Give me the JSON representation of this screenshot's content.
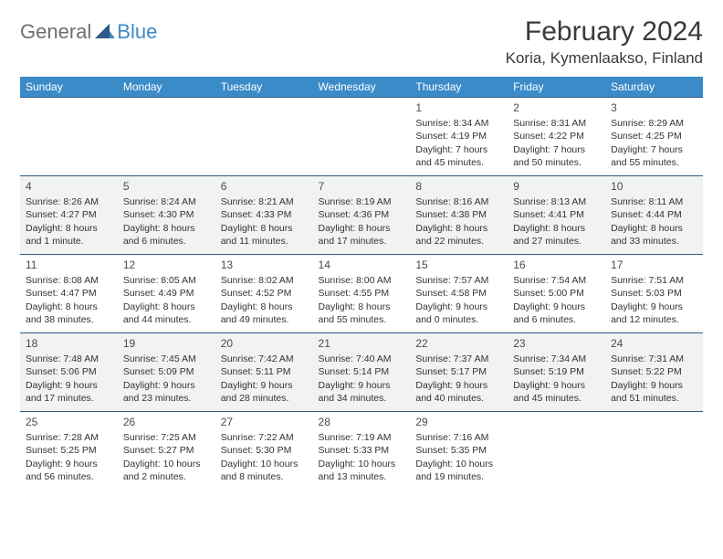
{
  "logo": {
    "part1": "General",
    "part2": "Blue"
  },
  "title": "February 2024",
  "location": "Koria, Kymenlaakso, Finland",
  "colors": {
    "header_bg": "#3b8bc8",
    "header_text": "#ffffff",
    "border": "#2f5b88",
    "alt_row": "#f1f2f2",
    "logo_gray": "#6d6e71",
    "logo_blue": "#3b8bc8"
  },
  "day_headers": [
    "Sunday",
    "Monday",
    "Tuesday",
    "Wednesday",
    "Thursday",
    "Friday",
    "Saturday"
  ],
  "weeks": [
    {
      "alt": false,
      "days": [
        null,
        null,
        null,
        null,
        {
          "n": "1",
          "sunrise": "Sunrise: 8:34 AM",
          "sunset": "Sunset: 4:19 PM",
          "day1": "Daylight: 7 hours",
          "day2": "and 45 minutes."
        },
        {
          "n": "2",
          "sunrise": "Sunrise: 8:31 AM",
          "sunset": "Sunset: 4:22 PM",
          "day1": "Daylight: 7 hours",
          "day2": "and 50 minutes."
        },
        {
          "n": "3",
          "sunrise": "Sunrise: 8:29 AM",
          "sunset": "Sunset: 4:25 PM",
          "day1": "Daylight: 7 hours",
          "day2": "and 55 minutes."
        }
      ]
    },
    {
      "alt": true,
      "days": [
        {
          "n": "4",
          "sunrise": "Sunrise: 8:26 AM",
          "sunset": "Sunset: 4:27 PM",
          "day1": "Daylight: 8 hours",
          "day2": "and 1 minute."
        },
        {
          "n": "5",
          "sunrise": "Sunrise: 8:24 AM",
          "sunset": "Sunset: 4:30 PM",
          "day1": "Daylight: 8 hours",
          "day2": "and 6 minutes."
        },
        {
          "n": "6",
          "sunrise": "Sunrise: 8:21 AM",
          "sunset": "Sunset: 4:33 PM",
          "day1": "Daylight: 8 hours",
          "day2": "and 11 minutes."
        },
        {
          "n": "7",
          "sunrise": "Sunrise: 8:19 AM",
          "sunset": "Sunset: 4:36 PM",
          "day1": "Daylight: 8 hours",
          "day2": "and 17 minutes."
        },
        {
          "n": "8",
          "sunrise": "Sunrise: 8:16 AM",
          "sunset": "Sunset: 4:38 PM",
          "day1": "Daylight: 8 hours",
          "day2": "and 22 minutes."
        },
        {
          "n": "9",
          "sunrise": "Sunrise: 8:13 AM",
          "sunset": "Sunset: 4:41 PM",
          "day1": "Daylight: 8 hours",
          "day2": "and 27 minutes."
        },
        {
          "n": "10",
          "sunrise": "Sunrise: 8:11 AM",
          "sunset": "Sunset: 4:44 PM",
          "day1": "Daylight: 8 hours",
          "day2": "and 33 minutes."
        }
      ]
    },
    {
      "alt": false,
      "days": [
        {
          "n": "11",
          "sunrise": "Sunrise: 8:08 AM",
          "sunset": "Sunset: 4:47 PM",
          "day1": "Daylight: 8 hours",
          "day2": "and 38 minutes."
        },
        {
          "n": "12",
          "sunrise": "Sunrise: 8:05 AM",
          "sunset": "Sunset: 4:49 PM",
          "day1": "Daylight: 8 hours",
          "day2": "and 44 minutes."
        },
        {
          "n": "13",
          "sunrise": "Sunrise: 8:02 AM",
          "sunset": "Sunset: 4:52 PM",
          "day1": "Daylight: 8 hours",
          "day2": "and 49 minutes."
        },
        {
          "n": "14",
          "sunrise": "Sunrise: 8:00 AM",
          "sunset": "Sunset: 4:55 PM",
          "day1": "Daylight: 8 hours",
          "day2": "and 55 minutes."
        },
        {
          "n": "15",
          "sunrise": "Sunrise: 7:57 AM",
          "sunset": "Sunset: 4:58 PM",
          "day1": "Daylight: 9 hours",
          "day2": "and 0 minutes."
        },
        {
          "n": "16",
          "sunrise": "Sunrise: 7:54 AM",
          "sunset": "Sunset: 5:00 PM",
          "day1": "Daylight: 9 hours",
          "day2": "and 6 minutes."
        },
        {
          "n": "17",
          "sunrise": "Sunrise: 7:51 AM",
          "sunset": "Sunset: 5:03 PM",
          "day1": "Daylight: 9 hours",
          "day2": "and 12 minutes."
        }
      ]
    },
    {
      "alt": true,
      "days": [
        {
          "n": "18",
          "sunrise": "Sunrise: 7:48 AM",
          "sunset": "Sunset: 5:06 PM",
          "day1": "Daylight: 9 hours",
          "day2": "and 17 minutes."
        },
        {
          "n": "19",
          "sunrise": "Sunrise: 7:45 AM",
          "sunset": "Sunset: 5:09 PM",
          "day1": "Daylight: 9 hours",
          "day2": "and 23 minutes."
        },
        {
          "n": "20",
          "sunrise": "Sunrise: 7:42 AM",
          "sunset": "Sunset: 5:11 PM",
          "day1": "Daylight: 9 hours",
          "day2": "and 28 minutes."
        },
        {
          "n": "21",
          "sunrise": "Sunrise: 7:40 AM",
          "sunset": "Sunset: 5:14 PM",
          "day1": "Daylight: 9 hours",
          "day2": "and 34 minutes."
        },
        {
          "n": "22",
          "sunrise": "Sunrise: 7:37 AM",
          "sunset": "Sunset: 5:17 PM",
          "day1": "Daylight: 9 hours",
          "day2": "and 40 minutes."
        },
        {
          "n": "23",
          "sunrise": "Sunrise: 7:34 AM",
          "sunset": "Sunset: 5:19 PM",
          "day1": "Daylight: 9 hours",
          "day2": "and 45 minutes."
        },
        {
          "n": "24",
          "sunrise": "Sunrise: 7:31 AM",
          "sunset": "Sunset: 5:22 PM",
          "day1": "Daylight: 9 hours",
          "day2": "and 51 minutes."
        }
      ]
    },
    {
      "alt": false,
      "days": [
        {
          "n": "25",
          "sunrise": "Sunrise: 7:28 AM",
          "sunset": "Sunset: 5:25 PM",
          "day1": "Daylight: 9 hours",
          "day2": "and 56 minutes."
        },
        {
          "n": "26",
          "sunrise": "Sunrise: 7:25 AM",
          "sunset": "Sunset: 5:27 PM",
          "day1": "Daylight: 10 hours",
          "day2": "and 2 minutes."
        },
        {
          "n": "27",
          "sunrise": "Sunrise: 7:22 AM",
          "sunset": "Sunset: 5:30 PM",
          "day1": "Daylight: 10 hours",
          "day2": "and 8 minutes."
        },
        {
          "n": "28",
          "sunrise": "Sunrise: 7:19 AM",
          "sunset": "Sunset: 5:33 PM",
          "day1": "Daylight: 10 hours",
          "day2": "and 13 minutes."
        },
        {
          "n": "29",
          "sunrise": "Sunrise: 7:16 AM",
          "sunset": "Sunset: 5:35 PM",
          "day1": "Daylight: 10 hours",
          "day2": "and 19 minutes."
        },
        null,
        null
      ]
    }
  ]
}
